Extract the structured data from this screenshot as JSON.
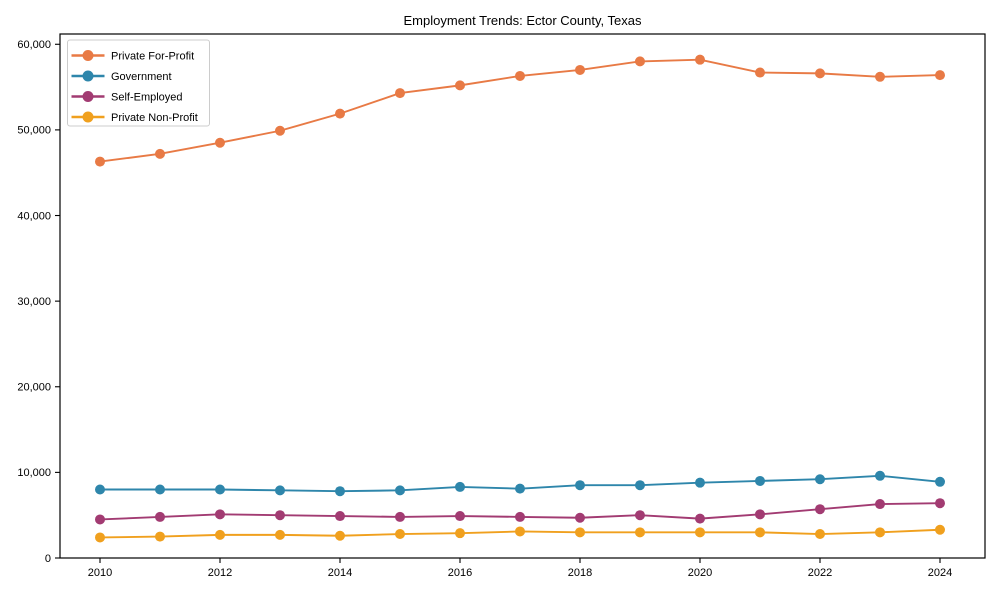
{
  "figure": {
    "background": "#ffffff",
    "axis_color": "#000000",
    "tick_label_color": "#000000"
  },
  "chart_data": {
    "type": "line",
    "title": "Employment Trends: Ector County, Texas",
    "xlabel": "",
    "ylabel": "",
    "grid": false,
    "legend_position": "upper-left",
    "x": [
      2010,
      2011,
      2012,
      2013,
      2014,
      2015,
      2016,
      2017,
      2018,
      2019,
      2020,
      2021,
      2022,
      2023,
      2024
    ],
    "x_tick_labels": [
      "2010",
      "2012",
      "2014",
      "2016",
      "2018",
      "2020",
      "2022",
      "2024"
    ],
    "y_ticks": [
      0,
      10000,
      20000,
      30000,
      40000,
      50000,
      60000
    ],
    "y_tick_labels": [
      "0",
      "10,000",
      "20,000",
      "30,000",
      "40,000",
      "50,000",
      "60,000"
    ],
    "ylim": [
      0,
      61200
    ],
    "series": [
      {
        "name": "Private For-Profit",
        "color": "#E87A45",
        "values": [
          46300,
          47200,
          48500,
          49900,
          51900,
          54300,
          55200,
          56300,
          57000,
          58000,
          58200,
          56700,
          56600,
          56200,
          56400
        ]
      },
      {
        "name": "Government",
        "color": "#2E86AB",
        "values": [
          8000,
          8000,
          8000,
          7900,
          7800,
          7900,
          8300,
          8100,
          8500,
          8500,
          8800,
          9000,
          9200,
          9600,
          8900
        ]
      },
      {
        "name": "Self-Employed",
        "color": "#A23B72",
        "values": [
          4500,
          4800,
          5100,
          5000,
          4900,
          4800,
          4900,
          4800,
          4700,
          5000,
          4600,
          5100,
          5700,
          6300,
          6400
        ]
      },
      {
        "name": "Private Non-Profit",
        "color": "#F0A01E",
        "values": [
          2400,
          2500,
          2700,
          2700,
          2600,
          2800,
          2900,
          3100,
          3000,
          3000,
          3000,
          3000,
          2800,
          3000,
          3300
        ]
      }
    ]
  }
}
